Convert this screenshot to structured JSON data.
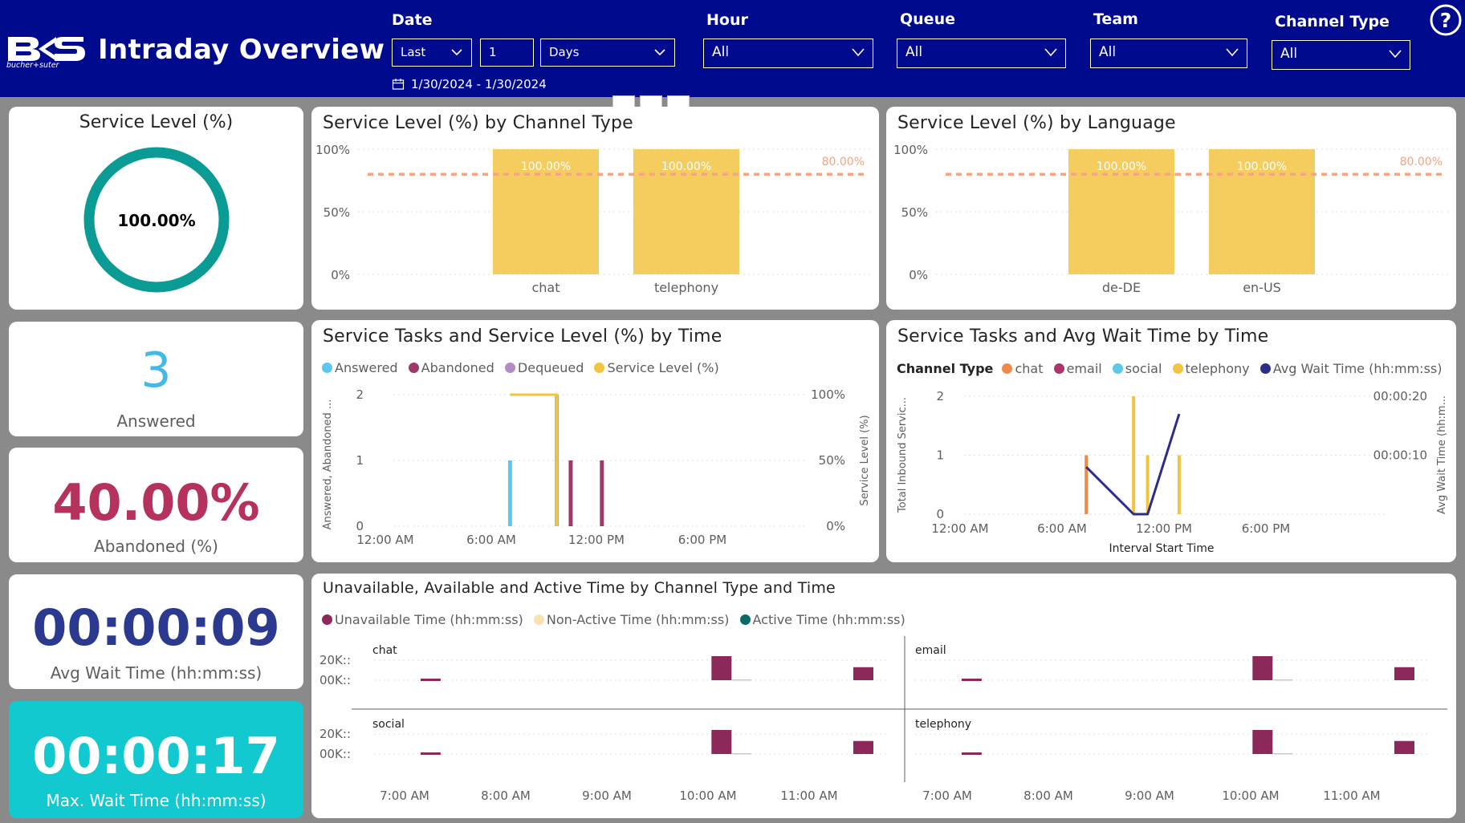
{
  "app": {
    "title": "Intraday Overview",
    "logo_sub": "bucher+suter"
  },
  "filters": {
    "date": {
      "label": "Date",
      "mode": "Last",
      "count": "1",
      "unit": "Days",
      "range": "1/30/2024 - 1/30/2024"
    },
    "hour": {
      "label": "Hour",
      "value": "All"
    },
    "queue": {
      "label": "Queue",
      "value": "All"
    },
    "team": {
      "label": "Team",
      "value": "All"
    },
    "channel_type": {
      "label": "Channel Type",
      "value": "All"
    },
    "help_glyph": "?"
  },
  "kpis": {
    "service_level": {
      "title": "Service Level (%)",
      "value": "100.00%",
      "fraction": 1.0
    },
    "answered": {
      "value": "3",
      "label": "Answered"
    },
    "abandoned": {
      "value": "40.00%",
      "label": "Abandoned (%)"
    },
    "avg_wait": {
      "value": "00:00:09",
      "label": "Avg Wait Time (hh:mm:ss)"
    },
    "max_wait": {
      "value": "00:00:17",
      "label": "Max. Wait Time (hh:mm:ss)"
    }
  },
  "colors": {
    "header": "#000a8c",
    "teal": "#0a9c94",
    "bar_yellow": "#f5cd5f",
    "target": "#f4a582",
    "answered": "#5bc8ec",
    "abandoned": "#a0386b",
    "dequeued": "#b48bc4",
    "service_level": "#f5c342",
    "chat": "#f08a4b",
    "email": "#b0336b",
    "social": "#5bc8ec",
    "telephony": "#f5c342",
    "avg_wait_line": "#2b2f86",
    "unavailable": "#8b2a5a",
    "non_active": "#f8e2b0",
    "active": "#0b6a66",
    "kpi_answered": "#44b8e6",
    "kpi_abandoned": "#b5325d",
    "kpi_avg": "#2b3a8f",
    "kpi_max_bg": "#12c9cf"
  },
  "chart_data": [
    {
      "id": "sl_by_channel",
      "type": "bar",
      "title": "Service Level (%) by Channel Type",
      "categories": [
        "chat",
        "telephony"
      ],
      "values": [
        100,
        100
      ],
      "data_labels": [
        "100.00%",
        "100.00%"
      ],
      "y_ticks": [
        "100%",
        "50%",
        "0%"
      ],
      "ylim": [
        0,
        100
      ],
      "target": {
        "value": 80,
        "label": "80.00%"
      }
    },
    {
      "id": "sl_by_language",
      "type": "bar",
      "title": "Service Level (%) by Language",
      "categories": [
        "de-DE",
        "en-US"
      ],
      "values": [
        100,
        100
      ],
      "data_labels": [
        "100.00%",
        "100.00%"
      ],
      "y_ticks": [
        "100%",
        "50%",
        "0%"
      ],
      "ylim": [
        0,
        100
      ],
      "target": {
        "value": 80,
        "label": "80.00%"
      }
    },
    {
      "id": "tasks_sl_by_time",
      "type": "bar",
      "title": "Service Tasks and Service Level (%) by Time",
      "legend": [
        "Answered",
        "Abandoned",
        "Dequeued",
        "Service Level (%)"
      ],
      "x_ticks": [
        "12:00 AM",
        "6:00 AM",
        "12:00 PM",
        "6:00 PM"
      ],
      "x_range_hours": [
        0,
        24
      ],
      "y_left_ticks": [
        "2",
        "1",
        "0"
      ],
      "y_right_ticks": [
        "100%",
        "50%",
        "0%"
      ],
      "ylim_left": [
        0,
        2
      ],
      "ylabel_left": "Answered, Abandoned ...",
      "ylabel_right": "Service Level (%)",
      "series": [
        {
          "name": "Answered",
          "hours": [
            7.2,
            9.9
          ],
          "values": [
            1,
            2
          ]
        },
        {
          "name": "Abandoned",
          "hours": [
            10.7,
            12.5
          ],
          "values": [
            1,
            1
          ]
        },
        {
          "name": "Dequeued",
          "hours": [],
          "values": []
        }
      ],
      "service_level_line": {
        "hours": [
          7.2,
          9.9,
          9.9
        ],
        "values": [
          100,
          100,
          0
        ]
      }
    },
    {
      "id": "tasks_wait_by_time",
      "type": "line",
      "title": "Service Tasks and Avg Wait Time by Time",
      "legend_title": "Channel Type",
      "legend": [
        "chat",
        "email",
        "social",
        "telephony",
        "Avg Wait Time (hh:mm:ss)"
      ],
      "x_ticks": [
        "12:00 AM",
        "6:00 AM",
        "12:00 PM",
        "6:00 PM"
      ],
      "xlabel": "Interval Start Time",
      "y_left_ticks": [
        "2",
        "1",
        "0"
      ],
      "y_right_ticks": [
        "00:00:20",
        "00:00:10"
      ],
      "ylabel_left": "Total Inbound Servic...",
      "ylabel_right": "Avg Wait Time (hh:m...",
      "ylim_left": [
        0,
        2
      ],
      "ylim_right_seconds": [
        0,
        20
      ],
      "series": [
        {
          "name": "chat",
          "hours": [
            7.2
          ],
          "values": [
            1
          ]
        },
        {
          "name": "telephony",
          "hours": [
            9.9,
            10.7,
            12.5
          ],
          "values": [
            2,
            1,
            1
          ]
        }
      ],
      "avg_wait_line": {
        "hours": [
          7.2,
          9.9,
          10.7,
          12.5
        ],
        "seconds": [
          8,
          0,
          0,
          17
        ]
      }
    },
    {
      "id": "time_by_channel",
      "type": "bar",
      "title": "Unavailable, Available and Active Time by Channel Type and Time",
      "legend": [
        "Unavailable Time (hh:mm:ss)",
        "Non-Active Time (hh:mm:ss)",
        "Active Time (hh:mm:ss)"
      ],
      "x_ticks": [
        "7:00 AM",
        "8:00 AM",
        "9:00 AM",
        "10:00 AM",
        "11:00 AM"
      ],
      "x_range_hours": [
        6.75,
        11.5
      ],
      "y_ticks": [
        "20K::",
        "00K::"
      ],
      "ylim": [
        0,
        30000
      ],
      "panels": [
        {
          "name": "chat",
          "hours": [
            7.25,
            10.0,
            11.5
          ],
          "unavailable": [
            1500,
            24000,
            13000
          ],
          "non_active": [
            0,
            500,
            0
          ]
        },
        {
          "name": "email",
          "hours": [
            7.25,
            10.0,
            11.5
          ],
          "unavailable": [
            1500,
            24000,
            13000
          ],
          "non_active": [
            0,
            500,
            0
          ]
        },
        {
          "name": "social",
          "hours": [
            7.25,
            10.0,
            11.5
          ],
          "unavailable": [
            1500,
            24000,
            13000
          ],
          "non_active": [
            0,
            500,
            0
          ]
        },
        {
          "name": "telephony",
          "hours": [
            7.25,
            10.0,
            11.5
          ],
          "unavailable": [
            1500,
            24000,
            13000
          ],
          "non_active": [
            0,
            500,
            0
          ]
        }
      ]
    }
  ]
}
